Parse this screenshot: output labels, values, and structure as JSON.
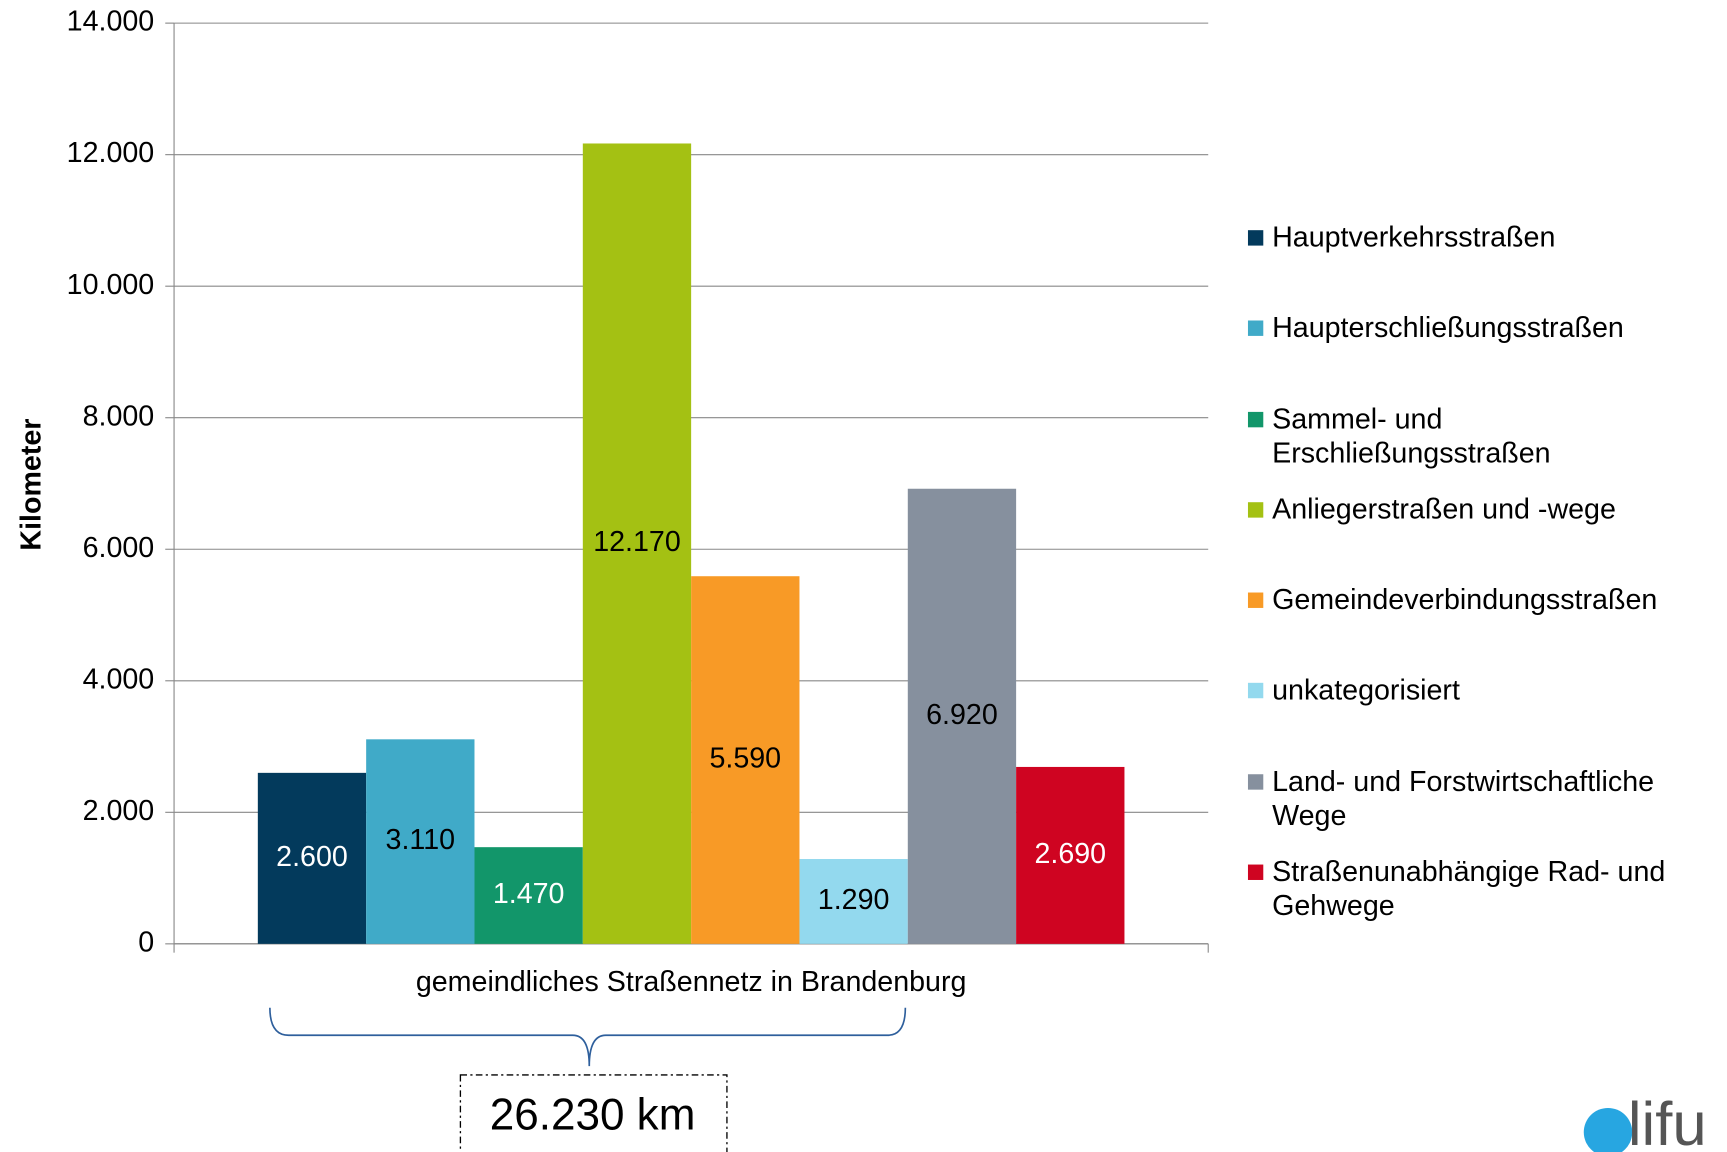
{
  "chart_data": {
    "type": "bar",
    "y_axis_label": "Kilometer",
    "categories": [
      "gemeindliches Straßennetz in Brandenburg"
    ],
    "series": [
      {
        "name": "Hauptverkehrsstraßen",
        "color": "#033a5c",
        "values": [
          2600
        ],
        "value_labels": [
          "2.600"
        ]
      },
      {
        "name": "Haupterschließungsstraßen",
        "color": "#40aac8",
        "values": [
          3110
        ],
        "value_labels": [
          "3.110"
        ]
      },
      {
        "name": "Sammel- und Erschließungsstraßen",
        "color": "#12966a",
        "values": [
          1470
        ],
        "value_labels": [
          "1.470"
        ]
      },
      {
        "name": "Anliegerstraßen und -wege",
        "color": "#a4c113",
        "values": [
          12170
        ],
        "value_labels": [
          "12.170"
        ]
      },
      {
        "name": "Gemeindeverbindungsstraßen",
        "color": "#f89a26",
        "values": [
          5590
        ],
        "value_labels": [
          "5.590"
        ]
      },
      {
        "name": "unkategorisiert",
        "color": "#93d9ee",
        "values": [
          1290
        ],
        "value_labels": [
          "1.290"
        ]
      },
      {
        "name": "Land- und Forstwirtschaftliche Wege",
        "color": "#86909e",
        "values": [
          6920
        ],
        "value_labels": [
          "6.920"
        ]
      },
      {
        "name": "Straßenunabhängige Rad- und Gehwege",
        "color": "#cf0421",
        "values": [
          2690
        ],
        "value_labels": [
          "2.690"
        ]
      }
    ],
    "ylim": [
      0,
      14000
    ],
    "yticks": [
      0,
      {
        "value": 2000,
        "label": "2.000"
      },
      {
        "value": 4000,
        "label": "4.000"
      },
      {
        "value": 6000,
        "label": "6.000"
      },
      {
        "value": 8000,
        "label": "8.000"
      },
      {
        "value": 10000,
        "label": "10.000"
      },
      {
        "value": 12000,
        "label": "12.000"
      },
      {
        "value": 14000,
        "label": "14.000"
      }
    ],
    "grid": true,
    "legend": "right",
    "annotation": "26.230 km",
    "logo": "lifu"
  }
}
